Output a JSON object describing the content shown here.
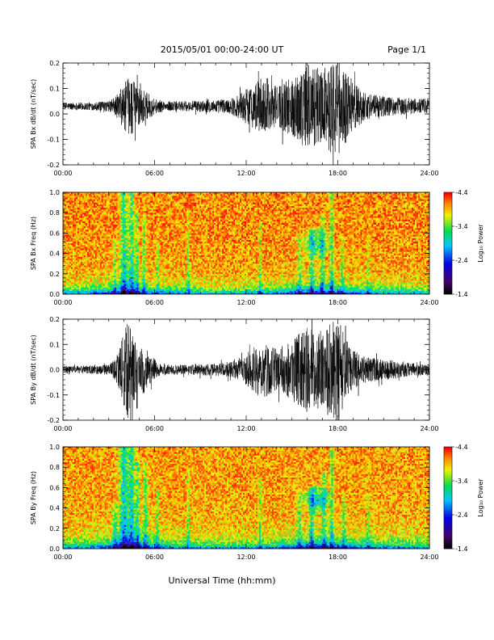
{
  "header": {
    "title": "2015/05/01  00:00-24:00 UT",
    "page_label": "Page 1/1"
  },
  "footer": {
    "xlabel": "Universal Time (hh:mm)"
  },
  "chart_data": [
    {
      "type": "line",
      "title": "",
      "ylabel": "SPA Bx dB/dt (nT/sec)",
      "xlabel": "",
      "xlim": [
        0,
        24
      ],
      "ylim": [
        -0.2,
        0.2
      ],
      "x_tick_labels": [
        "00:00",
        "06:00",
        "12:00",
        "18:00",
        "24:00"
      ],
      "y_tick_labels": [
        "-0.2",
        "-0.1",
        "0.0",
        "0.1",
        "0.2"
      ],
      "y_tick_values": [
        -0.2,
        -0.1,
        0.0,
        0.1,
        0.2
      ],
      "color": "#000000",
      "baseline": 0.03,
      "envelope": {
        "x": [
          0,
          1,
          2,
          3,
          3.6,
          4.0,
          4.4,
          4.8,
          5.2,
          5.6,
          6.2,
          7,
          8,
          9,
          10,
          11,
          11.5,
          12,
          12.5,
          13,
          13.5,
          14,
          14.5,
          15,
          15.5,
          16,
          16.5,
          17,
          17.5,
          18,
          18.5,
          19,
          19.5,
          20,
          21,
          22,
          23,
          24
        ],
        "amp": [
          0.015,
          0.015,
          0.016,
          0.02,
          0.05,
          0.09,
          0.12,
          0.09,
          0.07,
          0.05,
          0.025,
          0.02,
          0.02,
          0.022,
          0.025,
          0.03,
          0.05,
          0.07,
          0.09,
          0.11,
          0.09,
          0.08,
          0.1,
          0.12,
          0.14,
          0.18,
          0.16,
          0.14,
          0.18,
          0.2,
          0.15,
          0.1,
          0.07,
          0.05,
          0.04,
          0.035,
          0.03,
          0.03
        ]
      }
    },
    {
      "type": "heatmap",
      "title": "",
      "ylabel": "SPA Bx Freq (Hz)",
      "xlabel": "",
      "xlim": [
        0,
        24
      ],
      "ylim": [
        0,
        1.0
      ],
      "x_tick_labels": [
        "00:00",
        "06:00",
        "12:00",
        "18:00",
        "24:00"
      ],
      "y_tick_labels": [
        "0.0",
        "0.2",
        "0.4",
        "0.6",
        "0.8",
        "1.0"
      ],
      "y_tick_values": [
        0,
        0.2,
        0.4,
        0.6,
        0.8,
        1.0
      ],
      "colorbar": {
        "label": "Log₁₀ Power",
        "range": [
          -4.4,
          -1.4
        ],
        "tick_labels": [
          "-1.4",
          "-2.4",
          "-3.4",
          "-4.4"
        ],
        "tick_values": [
          -1.4,
          -2.4,
          -3.4,
          -4.4
        ]
      },
      "activity": {
        "background": -4.05,
        "low_freq_band": [
          [
            0,
            0.9
          ],
          [
            4,
            1.3
          ],
          [
            5,
            1.2
          ],
          [
            10,
            0.8
          ],
          [
            13,
            0.9
          ],
          [
            16,
            1.4
          ],
          [
            18,
            1.3
          ],
          [
            20,
            1.0
          ],
          [
            24,
            0.8
          ]
        ],
        "streaks": [
          {
            "t": 3.4,
            "w": 0.12,
            "top": 0.55,
            "s": 0.5
          },
          {
            "t": 4.0,
            "w": 0.25,
            "top": 1.0,
            "s": 1.0
          },
          {
            "t": 4.5,
            "w": 0.18,
            "top": 1.0,
            "s": 0.9
          },
          {
            "t": 4.85,
            "w": 0.12,
            "top": 0.8,
            "s": 0.7
          },
          {
            "t": 5.3,
            "w": 0.12,
            "top": 0.8,
            "s": 0.6
          },
          {
            "t": 6.2,
            "w": 0.1,
            "top": 0.5,
            "s": 0.4
          },
          {
            "t": 8.2,
            "w": 0.1,
            "top": 0.8,
            "s": 0.5
          },
          {
            "t": 12.9,
            "w": 0.1,
            "top": 0.7,
            "s": 0.5
          },
          {
            "t": 15.5,
            "w": 0.15,
            "top": 0.6,
            "s": 0.5
          },
          {
            "t": 16.3,
            "w": 0.15,
            "top": 0.65,
            "s": 0.7
          },
          {
            "t": 17.0,
            "w": 0.15,
            "top": 0.8,
            "s": 0.7
          },
          {
            "t": 17.6,
            "w": 0.12,
            "top": 1.0,
            "s": 0.8
          },
          {
            "t": 18.3,
            "w": 0.12,
            "top": 0.6,
            "s": 0.5
          },
          {
            "t": 20.0,
            "w": 0.1,
            "top": 0.6,
            "s": 0.4
          }
        ],
        "blob": {
          "t": 16.6,
          "f": 0.5,
          "rt": 0.9,
          "rf": 0.15,
          "s": 0.8
        }
      }
    },
    {
      "type": "line",
      "title": "",
      "ylabel": "SPA By dB/dt (nT/sec)",
      "xlabel": "",
      "xlim": [
        0,
        24
      ],
      "ylim": [
        -0.2,
        0.2
      ],
      "x_tick_labels": [
        "00:00",
        "06:00",
        "12:00",
        "18:00",
        "24:00"
      ],
      "y_tick_labels": [
        "-0.2",
        "-0.1",
        "0.0",
        "0.1",
        "0.2"
      ],
      "y_tick_values": [
        -0.2,
        -0.1,
        0.0,
        0.1,
        0.2
      ],
      "color": "#000000",
      "baseline": 0.0,
      "envelope": {
        "x": [
          0,
          1,
          2,
          3,
          3.4,
          3.7,
          4.0,
          4.3,
          4.6,
          5.0,
          5.3,
          5.7,
          6.2,
          7,
          8,
          9,
          10,
          11,
          11.5,
          12,
          12.5,
          13,
          13.5,
          14,
          14.5,
          15,
          15.5,
          16,
          16.5,
          17,
          17.5,
          18,
          18.5,
          19,
          19.5,
          20,
          21,
          22,
          23,
          24
        ],
        "amp": [
          0.015,
          0.015,
          0.016,
          0.02,
          0.04,
          0.08,
          0.15,
          0.2,
          0.13,
          0.08,
          0.1,
          0.06,
          0.03,
          0.02,
          0.02,
          0.022,
          0.025,
          0.03,
          0.045,
          0.06,
          0.09,
          0.12,
          0.1,
          0.08,
          0.1,
          0.12,
          0.15,
          0.17,
          0.15,
          0.16,
          0.19,
          0.2,
          0.13,
          0.08,
          0.06,
          0.05,
          0.04,
          0.035,
          0.025,
          0.02
        ]
      }
    },
    {
      "type": "heatmap",
      "title": "",
      "ylabel": "SPA By Freq (Hz)",
      "xlabel": "",
      "xlim": [
        0,
        24
      ],
      "ylim": [
        0,
        1.0
      ],
      "x_tick_labels": [
        "00:00",
        "06:00",
        "12:00",
        "18:00",
        "24:00"
      ],
      "y_tick_labels": [
        "0.0",
        "0.2",
        "0.4",
        "0.6",
        "0.8",
        "1.0"
      ],
      "y_tick_values": [
        0,
        0.2,
        0.4,
        0.6,
        0.8,
        1.0
      ],
      "colorbar": {
        "label": "Log₁₀ Power",
        "range": [
          -4.4,
          -1.4
        ],
        "tick_labels": [
          "-1.4",
          "-2.4",
          "-3.4",
          "-4.4"
        ],
        "tick_values": [
          -1.4,
          -2.4,
          -3.4,
          -4.4
        ]
      },
      "activity": {
        "background": -4.0,
        "low_freq_band": [
          [
            0,
            0.9
          ],
          [
            3.5,
            1.2
          ],
          [
            4.5,
            1.5
          ],
          [
            5.5,
            1.3
          ],
          [
            8,
            0.9
          ],
          [
            12,
            0.9
          ],
          [
            14,
            1.0
          ],
          [
            16,
            1.5
          ],
          [
            18,
            1.4
          ],
          [
            20,
            1.1
          ],
          [
            24,
            0.9
          ]
        ],
        "streaks": [
          {
            "t": 3.4,
            "w": 0.15,
            "top": 0.45,
            "s": 0.6
          },
          {
            "t": 4.0,
            "w": 0.3,
            "top": 1.0,
            "s": 1.1
          },
          {
            "t": 4.5,
            "w": 0.2,
            "top": 1.0,
            "s": 1.0
          },
          {
            "t": 4.9,
            "w": 0.15,
            "top": 0.85,
            "s": 0.8
          },
          {
            "t": 5.4,
            "w": 0.15,
            "top": 0.85,
            "s": 0.7
          },
          {
            "t": 6.2,
            "w": 0.1,
            "top": 0.6,
            "s": 0.5
          },
          {
            "t": 8.2,
            "w": 0.1,
            "top": 0.8,
            "s": 0.5
          },
          {
            "t": 12.9,
            "w": 0.1,
            "top": 0.7,
            "s": 0.5
          },
          {
            "t": 15.5,
            "w": 0.15,
            "top": 0.55,
            "s": 0.5
          },
          {
            "t": 16.3,
            "w": 0.15,
            "top": 0.6,
            "s": 0.7
          },
          {
            "t": 17.1,
            "w": 0.15,
            "top": 0.75,
            "s": 0.7
          },
          {
            "t": 17.6,
            "w": 0.12,
            "top": 1.0,
            "s": 0.8
          },
          {
            "t": 18.4,
            "w": 0.12,
            "top": 0.55,
            "s": 0.5
          },
          {
            "t": 20.0,
            "w": 0.1,
            "top": 0.55,
            "s": 0.4
          }
        ],
        "blob": {
          "t": 16.6,
          "f": 0.48,
          "rt": 0.8,
          "rf": 0.13,
          "s": 1.0
        }
      }
    }
  ]
}
